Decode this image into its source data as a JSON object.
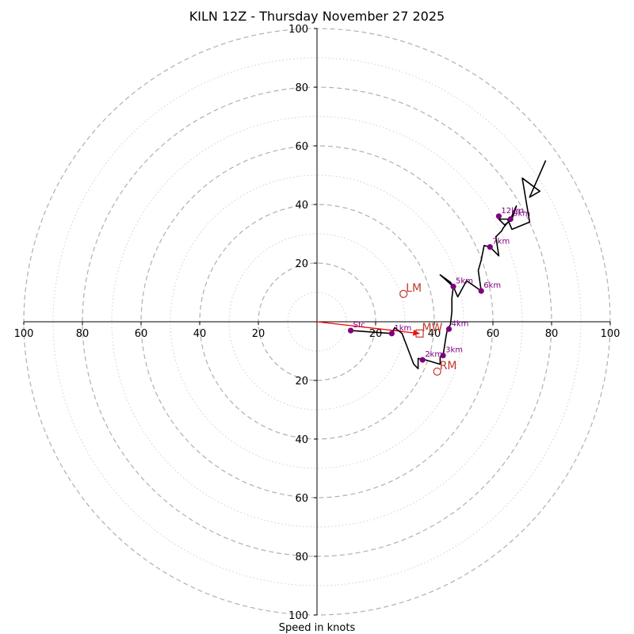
{
  "chart_data": {
    "type": "hodograph",
    "title": "KILN 12Z - Thursday November 27 2025",
    "xlabel": "Speed in knots",
    "units": "knots",
    "range": [
      -100,
      100
    ],
    "ring_step_major": 20,
    "ring_step_minor": 10,
    "tick_labels": {
      "x_left": [
        "100",
        "80",
        "60",
        "40",
        "20"
      ],
      "x_right": [
        "20",
        "40",
        "60",
        "80",
        "100"
      ],
      "y_up": [
        "20",
        "40",
        "60",
        "80",
        "100"
      ],
      "y_down": [
        "20",
        "40",
        "60",
        "80",
        "100"
      ]
    },
    "trace": [
      [
        11.5,
        -3
      ],
      [
        25.5,
        -4
      ],
      [
        26.5,
        -2
      ],
      [
        29,
        -4
      ],
      [
        33,
        -14.5
      ],
      [
        34.5,
        -16
      ],
      [
        34.5,
        -12.5
      ],
      [
        37,
        -13
      ],
      [
        42,
        -14.5
      ],
      [
        42,
        -12
      ],
      [
        43,
        -11.5
      ],
      [
        44,
        -5
      ],
      [
        44.5,
        -2.5
      ],
      [
        45.5,
        -1
      ],
      [
        46,
        3.5
      ],
      [
        46,
        8
      ],
      [
        46.5,
        12
      ],
      [
        45.5,
        13.5
      ],
      [
        42,
        16
      ],
      [
        46.5,
        12
      ],
      [
        48,
        8.5
      ],
      [
        51,
        14
      ],
      [
        56,
        10.5
      ],
      [
        55,
        17.5
      ],
      [
        56,
        21
      ],
      [
        57,
        26
      ],
      [
        59,
        25.5
      ],
      [
        62,
        22.5
      ],
      [
        61,
        29
      ],
      [
        63,
        31
      ],
      [
        63.5,
        32
      ],
      [
        66,
        35
      ],
      [
        67.5,
        38.5
      ],
      [
        68,
        39.5
      ],
      [
        66.5,
        35
      ],
      [
        64,
        33
      ],
      [
        62,
        35
      ],
      [
        65,
        35
      ],
      [
        66.5,
        31.5
      ],
      [
        72.5,
        34
      ],
      [
        70,
        49
      ],
      [
        76,
        44.5
      ],
      [
        72.5,
        42.5
      ],
      [
        78,
        55
      ]
    ],
    "height_labels": [
      {
        "label": "Sfc",
        "u": 11.5,
        "v": -3
      },
      {
        "label": "1km",
        "u": 25.5,
        "v": -4
      },
      {
        "label": "2km",
        "u": 36,
        "v": -13
      },
      {
        "label": "3km",
        "u": 43,
        "v": -11.5
      },
      {
        "label": "4km",
        "u": 45,
        "v": -2.5
      },
      {
        "label": "5km",
        "u": 46.5,
        "v": 12
      },
      {
        "label": "6km",
        "u": 56,
        "v": 10.5
      },
      {
        "label": "7km",
        "u": 59,
        "v": 25.5
      },
      {
        "label": "12km",
        "u": 62,
        "v": 36
      },
      {
        "label": "9km",
        "u": 66,
        "v": 35
      }
    ],
    "markers": {
      "LM": {
        "label": "LM",
        "u": 29.5,
        "v": 9.5
      },
      "MW": {
        "label": "MW",
        "u": 35,
        "v": -4
      },
      "RM": {
        "label": "RM",
        "u": 41,
        "v": -17
      }
    },
    "mean_wind_vector": {
      "from": [
        0,
        0
      ],
      "to": [
        35,
        -4
      ]
    },
    "colors": {
      "trace": "#000000",
      "heights": "#800080",
      "markers": "#c0392b",
      "vector": "#ff0000",
      "rings": "#b5b5b5"
    }
  }
}
